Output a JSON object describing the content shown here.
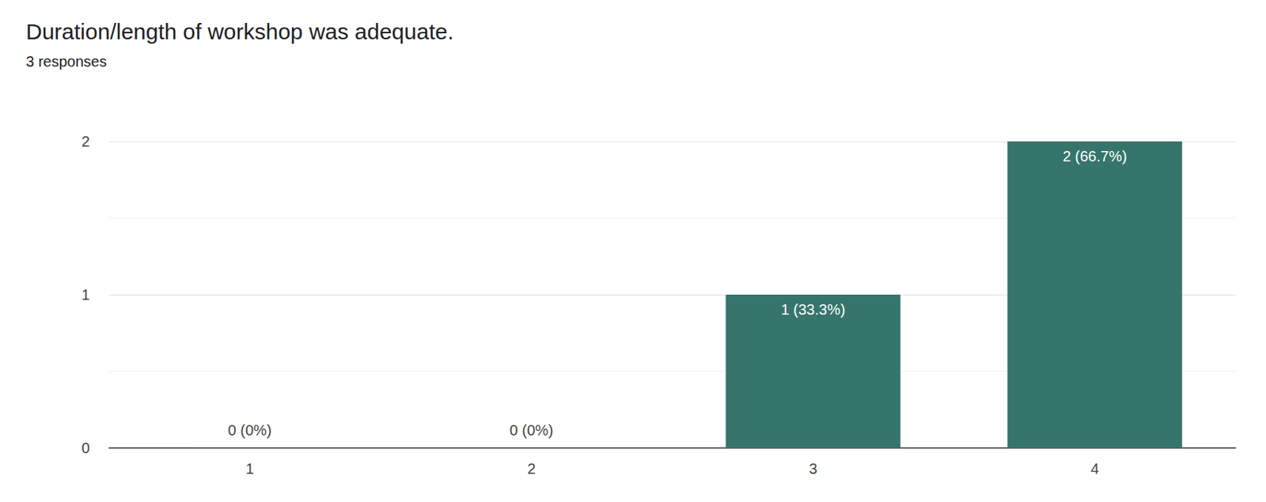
{
  "chart_data": {
    "type": "bar",
    "title": "Duration/length of workshop was adequate.",
    "subtitle": "3 responses",
    "categories": [
      "1",
      "2",
      "3",
      "4"
    ],
    "values": [
      0,
      0,
      1,
      2
    ],
    "value_labels": [
      "0 (0%)",
      "0 (0%)",
      "1 (33.3%)",
      "2 (66.7%)"
    ],
    "color": "#35756b",
    "ylim": [
      0,
      2
    ],
    "yticks": [
      0,
      1,
      2
    ],
    "grid": true,
    "data_labels": true
  }
}
